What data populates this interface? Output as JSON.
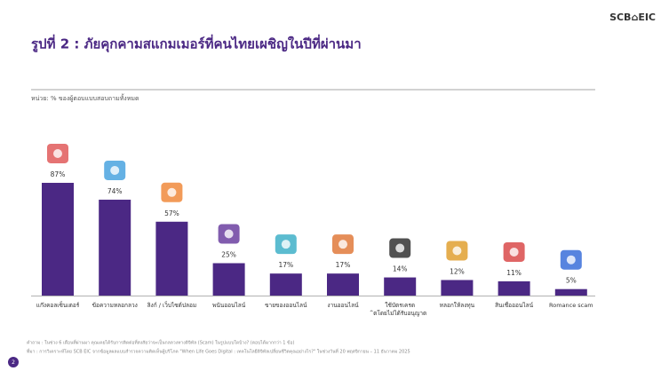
{
  "chart_data": {
    "type": "bar",
    "logo": "SCB⌂EIC",
    "title": "รูปที่ 2 : ภัยคุกคามสแกมเมอร์ที่คนไทยเผชิญในปีที่ผ่านมา",
    "subtitle": "หน่วย: % ของผู้ตอบแบบสอบถามทั้งหมด",
    "categories": [
      "แก๊งคอลเซ็นเตอร์",
      "ข้อความหลอกลวง",
      "ลิงก์ / เว็บไซต์ปลอม",
      "พนันออนไลน์",
      "ขายของออนไลน์",
      "งานออนไลน์",
      "ใช้บัตรเครดิตโดยไม่ได้รับอนุญาต",
      "หลอกให้ลงทุน",
      "สินเชื่อออนไลน์",
      "Romance scam"
    ],
    "values": [
      87,
      74,
      57,
      25,
      17,
      17,
      14,
      12,
      11,
      5
    ],
    "value_labels": [
      "87%",
      "74%",
      "57%",
      "25%",
      "17%",
      "17%",
      "14%",
      "12%",
      "11%",
      "5%"
    ],
    "color": "#4b2884",
    "notes": [
      "คำถาม : ในช่วง 6 เดือนที่ผ่านมา คุณเคยได้รับการติดต่อที่สงสัยว่าจะเป็นกลลวงทางดิจิทัล (Scam) ในรูปแบบใดบ้าง? (ตอบได้มากกว่า 1 ข้อ)",
      "ที่มา : การวิเคราะห์โดย SCB EIC จากข้อมูลผลแบบสำรวจความคิดเห็นผู้บริโภค \"When Life Goes Digital : เทคโนโลยีดิจิทัลเปลี่ยนชีวิตคุณอย่างไร?\" ในช่วงวันที่ 20 พฤศจิกายน – 11 ธันวาคม 2025"
    ],
    "page_number": "2"
  }
}
